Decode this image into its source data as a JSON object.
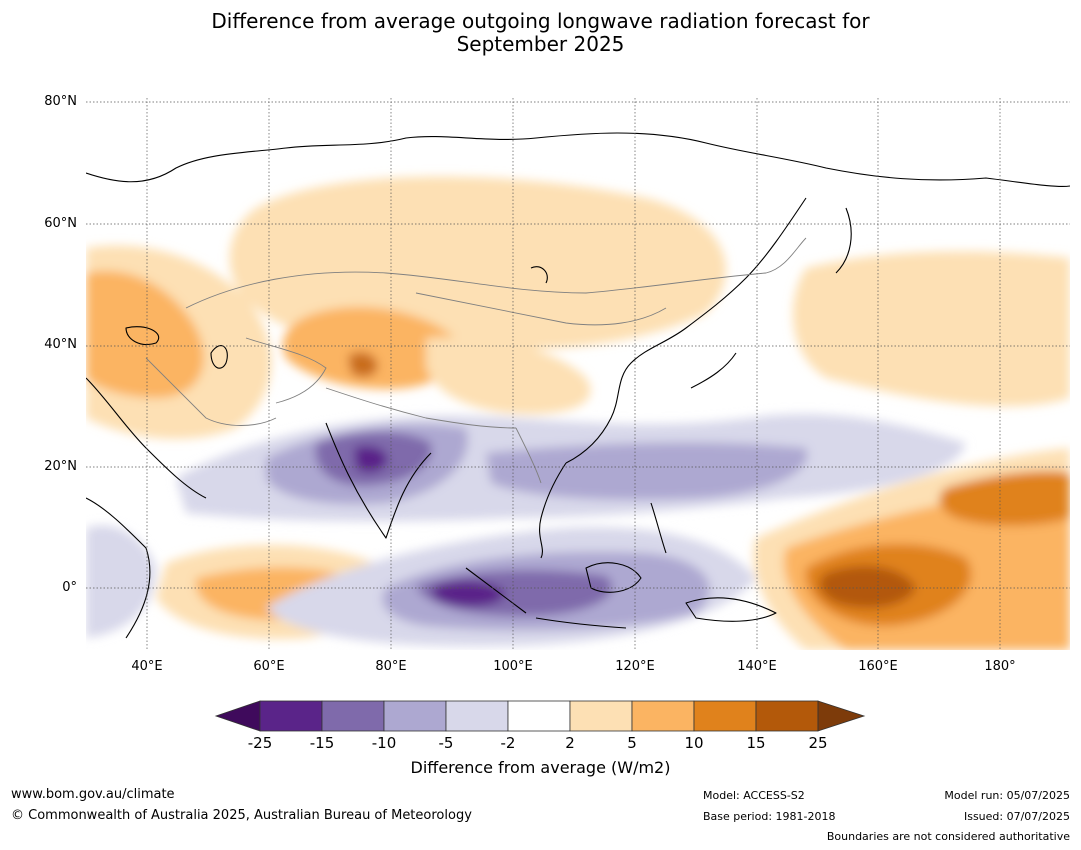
{
  "title_line1": "Difference from average outgoing longwave radiation forecast for",
  "title_line2": "September 2025",
  "map": {
    "lat_labels": [
      "80°N",
      "60°N",
      "40°N",
      "20°N",
      "0°"
    ],
    "lon_labels": [
      "40°E",
      "60°E",
      "80°E",
      "100°E",
      "120°E",
      "140°E",
      "160°E",
      "180°"
    ],
    "extent": {
      "lon_min": 30,
      "lon_max": 191,
      "lat_min": -10,
      "lat_max": 80
    },
    "ocean_color": "#ffffff",
    "coastline_color": "#000000",
    "border_color": "#808080"
  },
  "colorbar": {
    "label": "Difference from average (W/m2)",
    "ticks": [
      "-25",
      "-15",
      "-10",
      "-5",
      "-2",
      "2",
      "5",
      "10",
      "15",
      "25"
    ],
    "colors": [
      "#3f0a5c",
      "#5a2489",
      "#7f6aab",
      "#ada8d1",
      "#d8d8ea",
      "#ffffff",
      "#fde0b4",
      "#fbb462",
      "#e0821c",
      "#b3590a",
      "#7d3b0a"
    ]
  },
  "footer": {
    "url": "www.bom.gov.au/climate",
    "copyright": "© Commonwealth of Australia 2025, Australian Bureau of Meteorology",
    "model": "Model: ACCESS-S2",
    "base_period": "Base period: 1981-2018",
    "model_run": "Model run: 05/07/2025",
    "issued": "Issued: 07/07/2025",
    "note": "Boundaries are not considered authoritative"
  }
}
